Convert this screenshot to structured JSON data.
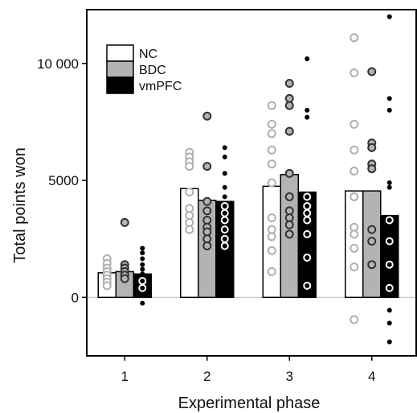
{
  "chart_data": {
    "type": "bar",
    "title": "",
    "xlabel": "Experimental phase",
    "ylabel": "Total points won",
    "ylim": [
      -2500,
      12300
    ],
    "yticks": [
      0,
      5000,
      10000
    ],
    "ytick_labels": [
      "0",
      "5000",
      "10 000"
    ],
    "categories": [
      "1",
      "2",
      "3",
      "4"
    ],
    "grid": false,
    "legend_position": "top-left",
    "series": [
      {
        "name": "NC",
        "fill": "#ffffff",
        "point_fill": "#ffffff",
        "point_stroke": "#b0b0b0",
        "values": [
          1050,
          4650,
          4750,
          4550
        ],
        "points": [
          [
            1650,
            1450,
            1250,
            1100,
            950,
            800,
            650,
            500
          ],
          [
            6200,
            6000,
            5800,
            5600,
            4500,
            3800,
            3500,
            3200,
            2900
          ],
          [
            8200,
            7400,
            7000,
            6300,
            5700,
            4900,
            3400,
            2900,
            2600,
            2000,
            1100
          ],
          [
            11100,
            9600,
            7400,
            6300,
            5400,
            4300,
            3000,
            2700,
            2100,
            1300,
            -950
          ]
        ]
      },
      {
        "name": "BDC",
        "fill": "#b3b3b3",
        "point_fill": "#b3b3b3",
        "point_stroke": "#333333",
        "values": [
          1100,
          4150,
          5250,
          4550
        ],
        "points": [
          [
            3200,
            1400,
            1250,
            1100,
            950,
            800
          ],
          [
            7750,
            5600,
            4100,
            3700,
            3300,
            3000,
            2800,
            2500,
            2200
          ],
          [
            9150,
            8500,
            8200,
            7100,
            5300,
            4300,
            3700,
            3400,
            3100,
            2700
          ],
          [
            9650,
            6600,
            6400,
            5700,
            5500,
            2900,
            2400,
            1400
          ]
        ]
      },
      {
        "name": "vmPFC",
        "fill": "#000000",
        "point_fill": "#000000",
        "point_stroke": "#000000",
        "values": [
          1000,
          4100,
          4500,
          3500
        ],
        "points": [
          [
            2100,
            1900,
            1650,
            1400,
            1200,
            1000,
            700,
            400,
            -250
          ],
          [
            6400,
            6000,
            5300,
            4700,
            4300,
            3900,
            3600,
            3300,
            2900,
            2500,
            2200
          ],
          [
            10200,
            8000,
            7700,
            4300,
            3900,
            3600,
            3300,
            2700,
            1700,
            500
          ],
          [
            12000,
            8500,
            8000,
            4900,
            4700,
            3300,
            2400,
            1400,
            400,
            -550,
            -1100,
            -1900
          ]
        ]
      }
    ]
  }
}
